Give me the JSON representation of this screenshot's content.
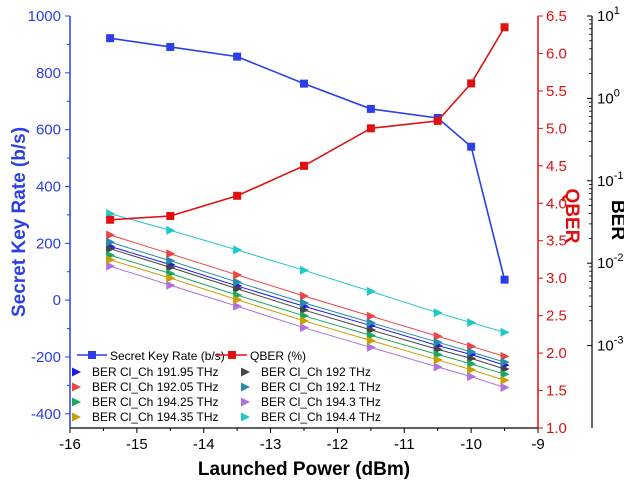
{
  "chart_data": {
    "type": "line",
    "xlabel": "Launched Power (dBm)",
    "xlim": [
      -16,
      -9
    ],
    "x_ticks": [
      "-16",
      "-15",
      "-14",
      "-13",
      "-12",
      "-11",
      "-10",
      "-9"
    ],
    "left_axis": {
      "label": "Secret Key Rate (b/s)",
      "ylim": [
        -450,
        1000
      ],
      "ticks": [
        "-400",
        "-200",
        "0",
        "200",
        "400",
        "600",
        "800",
        "1000"
      ],
      "color": "#2a3fe6"
    },
    "right_axis_qber": {
      "label": "QBER",
      "ylim": [
        1.0,
        6.5
      ],
      "ticks": [
        "1.0",
        "1.5",
        "2.0",
        "2.5",
        "3.0",
        "3.5",
        "4.0",
        "4.5",
        "5.0",
        "5.5",
        "6.0",
        "6.5"
      ],
      "color": "#e01010"
    },
    "right_axis_ber": {
      "label": "BER",
      "scale": "log",
      "ylim": [
        0.0001,
        10
      ],
      "ticks": [
        {
          "base": "10",
          "exp": "1"
        },
        {
          "base": "10",
          "exp": "0"
        },
        {
          "base": "10",
          "exp": "-1"
        },
        {
          "base": "10",
          "exp": "-2"
        },
        {
          "base": "10",
          "exp": "-3"
        }
      ]
    },
    "x": [
      -15.4,
      -14.5,
      -13.5,
      -12.5,
      -11.5,
      -10.5,
      -10.0,
      -9.5
    ],
    "series": [
      {
        "name": "Secret Key Rate (b/s)",
        "axis": "left",
        "marker": "square",
        "color": "#2a3fe6",
        "values": [
          922,
          891,
          857,
          762,
          673,
          641,
          540,
          72
        ]
      },
      {
        "name": "QBER (%)",
        "axis": "qber",
        "marker": "square",
        "color": "#e01010",
        "values": [
          3.78,
          3.83,
          4.1,
          4.5,
          5.0,
          5.1,
          5.6,
          6.35
        ]
      },
      {
        "name": "BER Cl_Ch 191.95 THz",
        "axis": "ber",
        "marker": "triangle-right",
        "color": "#1a1aee",
        "values": [
          0.016,
          0.0096,
          0.0053,
          0.003,
          0.00175,
          0.001,
          0.00078,
          0.00058
        ]
      },
      {
        "name": "BER Cl_Ch 192 THz",
        "axis": "ber",
        "marker": "triangle-right",
        "color": "#444444",
        "values": [
          0.015,
          0.0089,
          0.0049,
          0.0027,
          0.00155,
          0.0009,
          0.0007,
          0.00052
        ]
      },
      {
        "name": "BER Cl_Ch 192.05 THz",
        "axis": "ber",
        "marker": "triangle-right",
        "color": "#ee4444",
        "values": [
          0.022,
          0.013,
          0.0072,
          0.004,
          0.00228,
          0.0013,
          0.00098,
          0.00074
        ]
      },
      {
        "name": "BER Cl_Ch 192.1 THz",
        "axis": "ber",
        "marker": "triangle-right",
        "color": "#2a8aaa",
        "values": [
          0.018,
          0.0107,
          0.0059,
          0.0033,
          0.0019,
          0.0011,
          0.00084,
          0.00063
        ]
      },
      {
        "name": "BER Cl_Ch 194.25 THz",
        "axis": "ber",
        "marker": "triangle-right",
        "color": "#1aa860",
        "values": [
          0.0125,
          0.0075,
          0.0041,
          0.0023,
          0.00133,
          0.00078,
          0.0006,
          0.00045
        ]
      },
      {
        "name": "BER Cl_Ch 194.3 THz",
        "axis": "ber",
        "marker": "triangle-right",
        "color": "#b070e0",
        "values": [
          0.0092,
          0.0054,
          0.003,
          0.00165,
          0.00095,
          0.00055,
          0.00042,
          0.00031
        ]
      },
      {
        "name": "BER Cl_Ch 194.35 THz",
        "axis": "ber",
        "marker": "triangle-right",
        "color": "#c8a000",
        "values": [
          0.011,
          0.0066,
          0.0036,
          0.002,
          0.00115,
          0.00067,
          0.00051,
          0.00038
        ]
      },
      {
        "name": "BER Cl_Ch 194.4 THz",
        "axis": "ber",
        "marker": "triangle-right",
        "color": "#20c8c8",
        "values": [
          0.04,
          0.025,
          0.0145,
          0.0082,
          0.00455,
          0.0025,
          0.0019,
          0.00145
        ]
      }
    ],
    "legend_position": "bottom-left",
    "grid": false
  }
}
